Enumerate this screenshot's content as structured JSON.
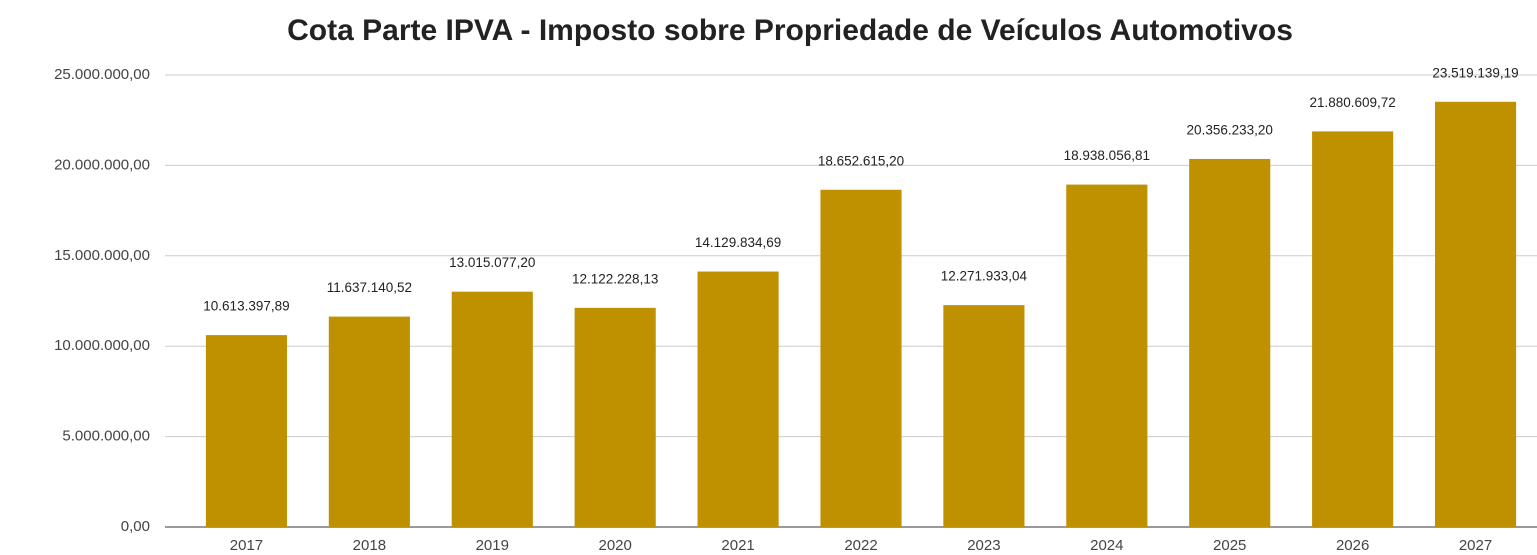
{
  "chart_data": {
    "type": "bar",
    "title": "Cota Parte IPVA - Imposto sobre Propriedade de Veículos Automotivos",
    "categories": [
      "2017",
      "2018",
      "2019",
      "2020",
      "2021",
      "2022",
      "2023",
      "2024",
      "2025",
      "2026",
      "2027"
    ],
    "values": [
      10613397.89,
      11637140.52,
      13015077.2,
      12122228.13,
      14129834.69,
      18652615.2,
      12271933.04,
      18938056.81,
      20356233.2,
      21880609.72,
      23519139.19
    ],
    "value_labels": [
      "10.613.397,89",
      "11.637.140,52",
      "13.015.077,20",
      "12.122.228,13",
      "14.129.834,69",
      "18.652.615,20",
      "12.271.933,04",
      "18.938.056,81",
      "20.356.233,20",
      "21.880.609,72",
      "23.519.139,19"
    ],
    "color": "#bf9000",
    "ylim": [
      0,
      25000000
    ],
    "yticks": [
      {
        "value": 0,
        "label": "0,00"
      },
      {
        "value": 5000000,
        "label": "5.000.000,00"
      },
      {
        "value": 10000000,
        "label": "10.000.000,00"
      },
      {
        "value": 15000000,
        "label": "15.000.000,00"
      },
      {
        "value": 20000000,
        "label": "20.000.000,00"
      },
      {
        "value": 25000000,
        "label": "25.000.000,00"
      }
    ],
    "grid": true
  }
}
